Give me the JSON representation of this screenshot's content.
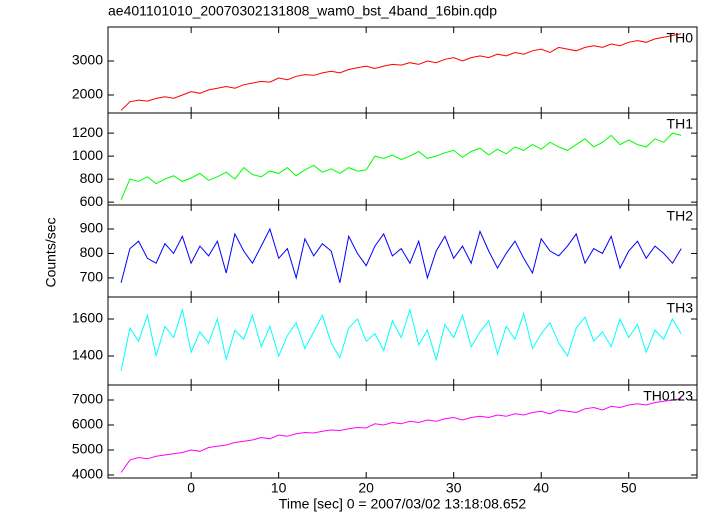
{
  "chart_data": [
    {
      "type": "line",
      "title": "ae401101010_20070302131808_wam0_bst_4band_16bin.qdp",
      "x": [
        -8,
        -7,
        -6,
        -5,
        -4,
        -3,
        -2,
        -1,
        0,
        1,
        2,
        3,
        4,
        5,
        6,
        7,
        8,
        9,
        10,
        11,
        12,
        13,
        14,
        15,
        16,
        17,
        18,
        19,
        20,
        21,
        22,
        23,
        24,
        25,
        26,
        27,
        28,
        29,
        30,
        31,
        32,
        33,
        34,
        35,
        36,
        37,
        38,
        39,
        40,
        41,
        42,
        43,
        44,
        45,
        46,
        47,
        48,
        49,
        50,
        51,
        52,
        53,
        54,
        55,
        56
      ],
      "xlim": [
        -9.5,
        57.8
      ],
      "ylim": [
        1470,
        4000
      ],
      "yticks": [
        2000,
        3000
      ],
      "series": [
        {
          "name": "TH0",
          "color": "#ff0000",
          "values": [
            1550,
            1800,
            1850,
            1820,
            1900,
            1950,
            1900,
            2000,
            2100,
            2050,
            2150,
            2200,
            2250,
            2200,
            2300,
            2350,
            2400,
            2380,
            2500,
            2450,
            2550,
            2600,
            2580,
            2650,
            2700,
            2650,
            2750,
            2800,
            2850,
            2780,
            2850,
            2900,
            2880,
            2950,
            2900,
            3000,
            2950,
            3050,
            3100,
            3000,
            3100,
            3150,
            3100,
            3200,
            3150,
            3250,
            3200,
            3300,
            3350,
            3250,
            3400,
            3350,
            3300,
            3400,
            3450,
            3400,
            3500,
            3450,
            3550,
            3600,
            3550,
            3650,
            3700,
            3750,
            3800
          ]
        }
      ]
    },
    {
      "type": "line",
      "x": [
        -8,
        -7,
        -6,
        -5,
        -4,
        -3,
        -2,
        -1,
        0,
        1,
        2,
        3,
        4,
        5,
        6,
        7,
        8,
        9,
        10,
        11,
        12,
        13,
        14,
        15,
        16,
        17,
        18,
        19,
        20,
        21,
        22,
        23,
        24,
        25,
        26,
        27,
        28,
        29,
        30,
        31,
        32,
        33,
        34,
        35,
        36,
        37,
        38,
        39,
        40,
        41,
        42,
        43,
        44,
        45,
        46,
        47,
        48,
        49,
        50,
        51,
        52,
        53,
        54,
        55,
        56
      ],
      "xlim": [
        -9.5,
        57.8
      ],
      "ylim": [
        575,
        1375
      ],
      "yticks": [
        600,
        800,
        1000,
        1200
      ],
      "series": [
        {
          "name": "TH1",
          "color": "#00ff00",
          "values": [
            620,
            800,
            780,
            820,
            760,
            800,
            830,
            780,
            810,
            850,
            790,
            820,
            860,
            800,
            900,
            840,
            820,
            870,
            850,
            900,
            830,
            880,
            920,
            860,
            890,
            850,
            900,
            870,
            880,
            1000,
            980,
            1010,
            970,
            1000,
            1040,
            980,
            1000,
            1030,
            1050,
            990,
            1040,
            1070,
            1010,
            1060,
            1020,
            1080,
            1050,
            1100,
            1060,
            1120,
            1080,
            1050,
            1100,
            1150,
            1080,
            1120,
            1180,
            1100,
            1140,
            1100,
            1080,
            1150,
            1120,
            1200,
            1180
          ]
        }
      ]
    },
    {
      "type": "line",
      "y_label": "Counts/sec",
      "x": [
        -8,
        -7,
        -6,
        -5,
        -4,
        -3,
        -2,
        -1,
        0,
        1,
        2,
        3,
        4,
        5,
        6,
        7,
        8,
        9,
        10,
        11,
        12,
        13,
        14,
        15,
        16,
        17,
        18,
        19,
        20,
        21,
        22,
        23,
        24,
        25,
        26,
        27,
        28,
        29,
        30,
        31,
        32,
        33,
        34,
        35,
        36,
        37,
        38,
        39,
        40,
        41,
        42,
        43,
        44,
        45,
        46,
        47,
        48,
        49,
        50,
        51,
        52,
        53,
        54,
        55,
        56
      ],
      "xlim": [
        -9.5,
        57.8
      ],
      "ylim": [
        622,
        998
      ],
      "yticks": [
        700,
        800,
        900
      ],
      "series": [
        {
          "name": "TH2",
          "color": "#0000ff",
          "values": [
            680,
            820,
            850,
            780,
            760,
            840,
            800,
            870,
            760,
            830,
            790,
            850,
            720,
            880,
            810,
            760,
            830,
            900,
            780,
            820,
            700,
            860,
            790,
            840,
            810,
            680,
            870,
            800,
            750,
            830,
            880,
            790,
            820,
            760,
            850,
            700,
            810,
            870,
            780,
            830,
            760,
            890,
            810,
            740,
            800,
            850,
            780,
            720,
            860,
            810,
            790,
            830,
            880,
            760,
            820,
            800,
            870,
            740,
            810,
            850,
            780,
            830,
            800,
            760,
            820
          ]
        }
      ]
    },
    {
      "type": "line",
      "x": [
        -8,
        -7,
        -6,
        -5,
        -4,
        -3,
        -2,
        -1,
        0,
        1,
        2,
        3,
        4,
        5,
        6,
        7,
        8,
        9,
        10,
        11,
        12,
        13,
        14,
        15,
        16,
        17,
        18,
        19,
        20,
        21,
        22,
        23,
        24,
        25,
        26,
        27,
        28,
        29,
        30,
        31,
        32,
        33,
        34,
        35,
        36,
        37,
        38,
        39,
        40,
        41,
        42,
        43,
        44,
        45,
        46,
        47,
        48,
        49,
        50,
        51,
        52,
        53,
        54,
        55,
        56
      ],
      "xlim": [
        -9.5,
        57.8
      ],
      "ylim": [
        1243,
        1719
      ],
      "yticks": [
        1400,
        1600
      ],
      "series": [
        {
          "name": "TH3",
          "color": "#00ffff",
          "values": [
            1320,
            1550,
            1480,
            1620,
            1400,
            1560,
            1500,
            1650,
            1420,
            1530,
            1470,
            1600,
            1380,
            1540,
            1490,
            1620,
            1450,
            1560,
            1400,
            1510,
            1580,
            1440,
            1530,
            1620,
            1470,
            1390,
            1550,
            1600,
            1480,
            1520,
            1430,
            1590,
            1500,
            1650,
            1460,
            1540,
            1380,
            1570,
            1500,
            1620,
            1450,
            1530,
            1590,
            1410,
            1560,
            1490,
            1630,
            1440,
            1520,
            1580,
            1470,
            1400,
            1550,
            1610,
            1480,
            1530,
            1450,
            1600,
            1500,
            1570,
            1420,
            1540,
            1490,
            1600,
            1520
          ]
        }
      ]
    },
    {
      "type": "line",
      "x_label": "Time [sec] 0 = 2007/03/02 13:18:08.652",
      "x": [
        -8,
        -7,
        -6,
        -5,
        -4,
        -3,
        -2,
        -1,
        0,
        1,
        2,
        3,
        4,
        5,
        6,
        7,
        8,
        9,
        10,
        11,
        12,
        13,
        14,
        15,
        16,
        17,
        18,
        19,
        20,
        21,
        22,
        23,
        24,
        25,
        26,
        27,
        28,
        29,
        30,
        31,
        32,
        33,
        34,
        35,
        36,
        37,
        38,
        39,
        40,
        41,
        42,
        43,
        44,
        45,
        46,
        47,
        48,
        49,
        50,
        51,
        52,
        53,
        54,
        55,
        56
      ],
      "xlim": [
        -9.5,
        57.8
      ],
      "xticks": [
        0,
        10,
        20,
        30,
        40,
        50
      ],
      "ylim": [
        3880,
        7600
      ],
      "yticks": [
        4000,
        5000,
        6000,
        7000
      ],
      "series": [
        {
          "name": "TH0123",
          "color": "#ff00ff",
          "values": [
            4100,
            4600,
            4700,
            4650,
            4750,
            4800,
            4850,
            4900,
            5000,
            4950,
            5100,
            5150,
            5200,
            5300,
            5350,
            5400,
            5500,
            5450,
            5600,
            5550,
            5650,
            5700,
            5680,
            5750,
            5800,
            5780,
            5850,
            5900,
            5880,
            6050,
            6000,
            6100,
            6050,
            6150,
            6100,
            6200,
            6150,
            6250,
            6300,
            6200,
            6300,
            6350,
            6300,
            6400,
            6350,
            6450,
            6400,
            6500,
            6550,
            6450,
            6600,
            6550,
            6500,
            6650,
            6700,
            6600,
            6750,
            6700,
            6800,
            6850,
            6800,
            6900,
            6950,
            7000,
            7050
          ]
        }
      ]
    }
  ]
}
